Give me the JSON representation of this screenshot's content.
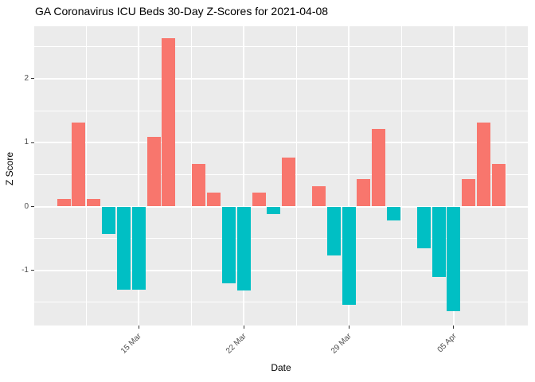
{
  "chart_data": {
    "type": "bar",
    "title": "GA Coronavirus ICU Beds 30-Day Z-Scores for 2021-04-08",
    "xlabel": "Date",
    "ylabel": "Z Score",
    "x": [
      "2021-03-10",
      "2021-03-11",
      "2021-03-12",
      "2021-03-13",
      "2021-03-14",
      "2021-03-15",
      "2021-03-16",
      "2021-03-17",
      "2021-03-18",
      "2021-03-19",
      "2021-03-20",
      "2021-03-21",
      "2021-03-22",
      "2021-03-23",
      "2021-03-24",
      "2021-03-25",
      "2021-03-26",
      "2021-03-27",
      "2021-03-28",
      "2021-03-29",
      "2021-03-30",
      "2021-03-31",
      "2021-04-01",
      "2021-04-02",
      "2021-04-03",
      "2021-04-04",
      "2021-04-05",
      "2021-04-06",
      "2021-04-07",
      "2021-04-08"
    ],
    "values": [
      0.12,
      1.31,
      0.12,
      -0.43,
      -1.3,
      -1.3,
      1.09,
      2.63,
      0,
      0.67,
      0.22,
      -1.2,
      -1.31,
      0.22,
      -0.12,
      0.76,
      0,
      0.32,
      -0.76,
      -1.54,
      0.43,
      1.21,
      -0.22,
      0,
      -0.66,
      -1.1,
      -1.64,
      0.43,
      1.31,
      0.67
    ],
    "x_ticks": [
      {
        "label": "15 Mar",
        "day_index": 5
      },
      {
        "label": "22 Mar",
        "day_index": 12
      },
      {
        "label": "29 Mar",
        "day_index": 19
      },
      {
        "label": "05 Apr",
        "day_index": 26
      }
    ],
    "x_minor_gridline_day_indices": [
      1.5,
      8.5,
      15.5,
      22.5,
      29.5
    ],
    "y_ticks": [
      {
        "label": "2",
        "value": 2
      },
      {
        "label": "1",
        "value": 1
      },
      {
        "label": "0",
        "value": 0
      },
      {
        "label": "-1",
        "value": -1
      }
    ],
    "y_minor_gridlines": [
      2.5,
      1.5,
      0.5,
      -0.5,
      -1.5
    ],
    "ylim": [
      -1.87,
      2.84
    ],
    "grid": true,
    "legend_position": "none",
    "colors": {
      "positive_bar": "#F8766D",
      "negative_bar": "#00BFC4",
      "panel_background": "#EBEBEB",
      "gridline": "#FFFFFF",
      "tick_label": "#4D4D4D",
      "axis_title": "#000000",
      "title_text": "#000000",
      "tick_mark": "#333333"
    }
  }
}
